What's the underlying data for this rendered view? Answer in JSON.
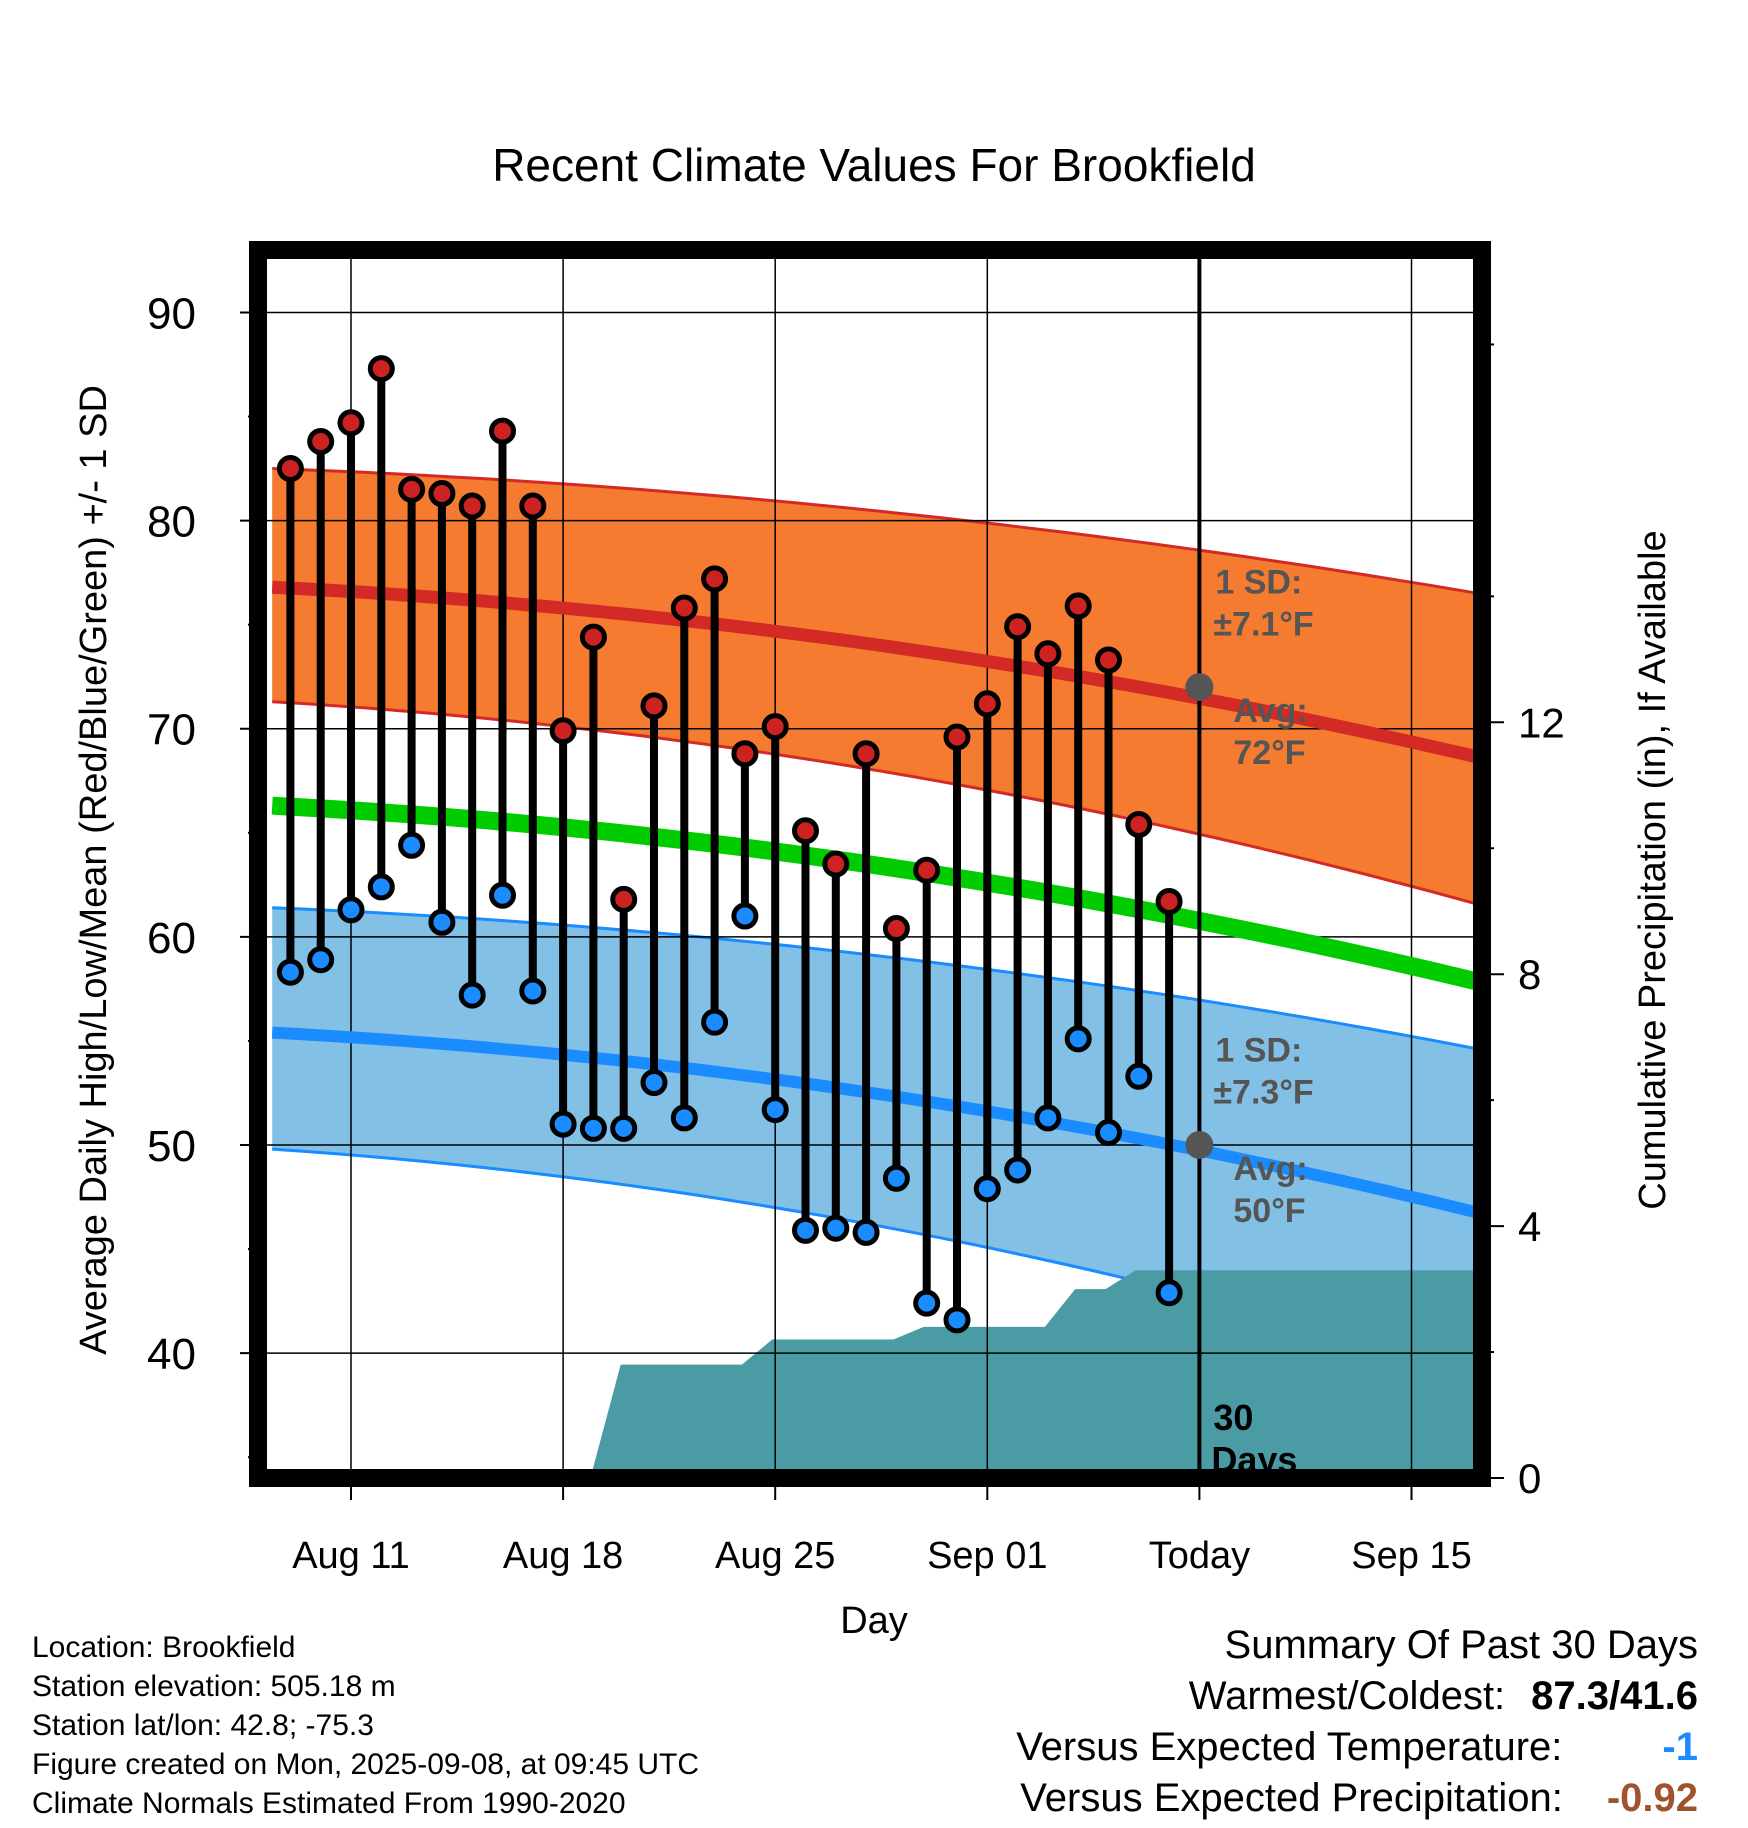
{
  "chart_data": {
    "type": "line",
    "title": "Recent Climate Values For Brookfield",
    "xlabel": "Day",
    "ylabel": "Average Daily High/Low/Mean (Red/Blue/Green) +/- 1 SD",
    "y2label": "Cumulative Precipitation (in), If Available",
    "ylim": [
      34,
      93
    ],
    "y2lim": [
      0,
      19.5
    ],
    "yticks": [
      40,
      50,
      60,
      70,
      80,
      90
    ],
    "y2ticks": [
      0,
      4,
      8,
      12
    ],
    "xticks": [
      {
        "day": 11,
        "label": "Aug 11"
      },
      {
        "day": 18,
        "label": "Aug 18"
      },
      {
        "day": 25,
        "label": "Aug 25"
      },
      {
        "day": 32,
        "label": "Sep 01"
      },
      {
        "day": 39,
        "label": "Today"
      },
      {
        "day": 46,
        "label": "Sep 15"
      }
    ],
    "grid": true,
    "daily": {
      "days": [
        9,
        10,
        11,
        12,
        13,
        14,
        15,
        16,
        17,
        18,
        19,
        20,
        21,
        22,
        23,
        24,
        25,
        26,
        27,
        28,
        29,
        30,
        31,
        32,
        33,
        34,
        35,
        36,
        37,
        38
      ],
      "highs": [
        82.5,
        83.8,
        84.7,
        87.3,
        81.5,
        81.3,
        80.7,
        84.3,
        80.7,
        69.9,
        74.4,
        61.8,
        71.1,
        75.8,
        77.2,
        68.8,
        70.1,
        65.1,
        63.5,
        68.8,
        60.4,
        63.2,
        69.6,
        71.2,
        74.9,
        73.6,
        75.9,
        73.3,
        65.4,
        61.7
      ],
      "lows": [
        58.3,
        58.9,
        61.3,
        62.4,
        64.4,
        60.7,
        57.2,
        62.0,
        57.4,
        51.0,
        50.8,
        50.8,
        53.0,
        51.3,
        55.9,
        61.0,
        51.7,
        45.9,
        46.0,
        45.8,
        48.4,
        42.4,
        41.6,
        47.9,
        48.8,
        51.3,
        55.1,
        50.6,
        53.3,
        42.9
      ]
    },
    "normals": {
      "days": [
        8.4,
        48.6
      ],
      "high_avg": [
        76.8,
        68.5
      ],
      "high_sd_upper": [
        82.5,
        76.4
      ],
      "high_sd_lower": [
        71.3,
        61.4
      ],
      "mean_avg": [
        66.3,
        57.7
      ],
      "low_avg": [
        55.4,
        46.6
      ],
      "low_sd_upper": [
        61.4,
        54.5
      ],
      "low_sd_lower": [
        49.8,
        38.8
      ]
    },
    "precipitation": {
      "days": [
        8.4,
        18.9,
        19.9,
        21.9,
        23.9,
        24.9,
        26.9,
        27.9,
        28.9,
        29.9,
        30.9,
        31.9,
        32.9,
        33.9,
        34.9,
        35.9,
        36.9,
        37.9,
        48.6
      ],
      "values": [
        0,
        0,
        1.8,
        1.8,
        1.8,
        2.2,
        2.2,
        2.2,
        2.2,
        2.4,
        2.4,
        2.4,
        2.4,
        2.4,
        3.0,
        3.0,
        3.3,
        3.3,
        3.3
      ]
    },
    "annotations": {
      "high_sd": "1 SD:",
      "high_sd_value": "±7.1°F",
      "high_avg_label": "Avg:",
      "high_avg_value": "72°F",
      "low_sd": "1 SD:",
      "low_sd_value": "±7.3°F",
      "low_avg_label": "Avg:",
      "low_avg_value": "50°F",
      "today_avg_high": 72,
      "today_avg_low": 50,
      "period_number": "30",
      "period_unit": "Days"
    },
    "colors": {
      "high_band": "#f47b30",
      "high_line": "#d42a26",
      "mean_line": "#00cc00",
      "low_band": "#82c0e6",
      "low_line": "#1a8cff",
      "precip": "#4a9ba3",
      "annotation": "#555555"
    }
  },
  "footer": {
    "location": "Location: Brookfield",
    "elevation": "Station elevation: 505.18 m",
    "latlon": "Station lat/lon: 42.8; -75.3",
    "created": "Figure created on Mon, 2025-09-08, at 09:45 UTC",
    "normals": "Climate Normals Estimated From 1990-2020"
  },
  "summary": {
    "title": "Summary Of Past 30 Days",
    "warmest_coldest_label": "Warmest/Coldest:",
    "warmest_coldest_value": "87.3/41.6",
    "temp_label": "Versus Expected Temperature:",
    "temp_value": "-1",
    "temp_color": "#1a8cff",
    "precip_label": "Versus Expected Precipitation:",
    "precip_value": "-0.92",
    "precip_color": "#a0522d"
  }
}
